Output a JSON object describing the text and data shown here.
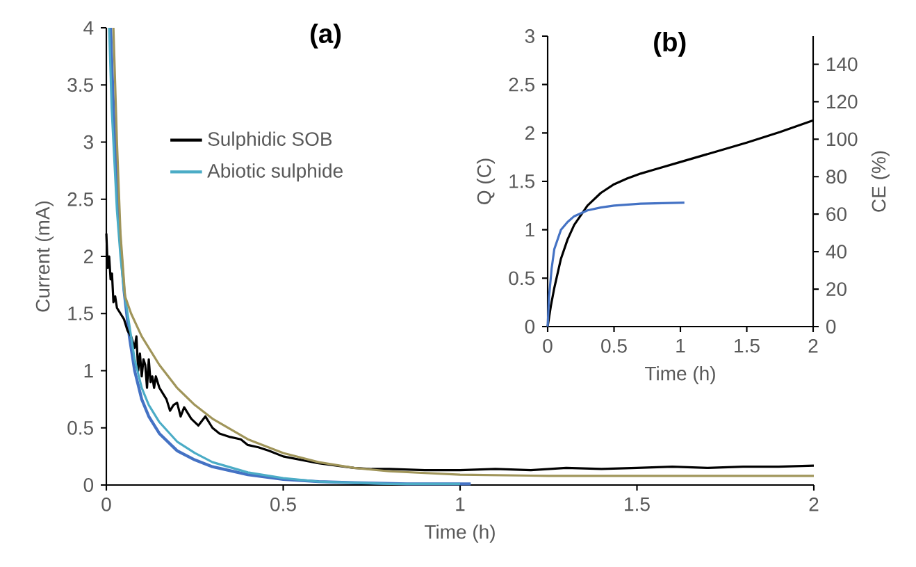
{
  "chart_data": [
    {
      "type": "line",
      "title": "(a)",
      "xlabel": "Time (h)",
      "ylabel": "Current (mA)",
      "xlim": [
        0,
        2
      ],
      "ylim": [
        0,
        4
      ],
      "xticks": [
        0,
        0.5,
        1,
        1.5,
        2
      ],
      "yticks": [
        0,
        0.5,
        1,
        1.5,
        2,
        2.5,
        3,
        3.5,
        4
      ],
      "legend": "top",
      "series": [
        {
          "color": "#4472c4",
          "x": [
            0.012,
            0.02,
            0.03,
            0.04,
            0.05,
            0.065,
            0.08,
            0.1,
            0.12,
            0.15,
            0.2,
            0.25,
            0.3,
            0.4,
            0.5,
            0.6,
            0.7,
            0.85,
            1.03
          ],
          "values": [
            4,
            3.3,
            2.6,
            2.1,
            1.7,
            1.3,
            1.0,
            0.75,
            0.6,
            0.45,
            0.3,
            0.22,
            0.16,
            0.09,
            0.05,
            0.03,
            0.02,
            0.01,
            0.01
          ]
        },
        {
          "name": "Sulphidic SOB",
          "color": "#000000",
          "x": [
            0,
            0.004,
            0.008,
            0.012,
            0.016,
            0.02,
            0.025,
            0.03,
            0.04,
            0.05,
            0.06,
            0.07,
            0.08,
            0.085,
            0.09,
            0.095,
            0.1,
            0.105,
            0.11,
            0.115,
            0.12,
            0.125,
            0.13,
            0.135,
            0.14,
            0.15,
            0.16,
            0.17,
            0.18,
            0.19,
            0.2,
            0.21,
            0.22,
            0.24,
            0.26,
            0.28,
            0.3,
            0.32,
            0.35,
            0.38,
            0.4,
            0.43,
            0.46,
            0.5,
            0.55,
            0.6,
            0.65,
            0.7,
            0.75,
            0.8,
            0.9,
            1.0,
            1.1,
            1.2,
            1.3,
            1.4,
            1.5,
            1.6,
            1.7,
            1.8,
            1.9,
            2.0
          ],
          "values": [
            2.2,
            1.9,
            2.0,
            1.8,
            1.85,
            1.6,
            1.65,
            1.55,
            1.5,
            1.45,
            1.35,
            1.3,
            1.2,
            1.3,
            1.0,
            1.15,
            0.95,
            1.1,
            1.05,
            0.85,
            1.1,
            0.9,
            0.95,
            0.85,
            0.95,
            0.85,
            0.8,
            0.75,
            0.65,
            0.7,
            0.72,
            0.6,
            0.68,
            0.58,
            0.52,
            0.6,
            0.5,
            0.45,
            0.42,
            0.4,
            0.35,
            0.33,
            0.3,
            0.25,
            0.22,
            0.19,
            0.17,
            0.15,
            0.14,
            0.14,
            0.13,
            0.13,
            0.14,
            0.13,
            0.15,
            0.14,
            0.15,
            0.16,
            0.15,
            0.16,
            0.16,
            0.17
          ]
        },
        {
          "name": "Abiotic sulphide",
          "color": "#4bacc6",
          "x": [
            0.008,
            0.015,
            0.02,
            0.03,
            0.04,
            0.05,
            0.06,
            0.08,
            0.1,
            0.12,
            0.15,
            0.2,
            0.25,
            0.3,
            0.4,
            0.5,
            0.6,
            0.7,
            0.8,
            1.0
          ],
          "values": [
            4,
            3.3,
            3.0,
            2.4,
            2.0,
            1.7,
            1.5,
            1.1,
            0.85,
            0.7,
            0.55,
            0.38,
            0.28,
            0.2,
            0.11,
            0.06,
            0.03,
            0.02,
            0.01,
            0.01
          ]
        },
        {
          "color": "#a0955a",
          "x": [
            0.02,
            0.03,
            0.04,
            0.053,
            0.07,
            0.1,
            0.15,
            0.2,
            0.25,
            0.3,
            0.4,
            0.5,
            0.6,
            0.7,
            0.8,
            1.0,
            1.25,
            1.5,
            1.75,
            2.0
          ],
          "values": [
            4,
            3.0,
            2.2,
            1.65,
            1.5,
            1.3,
            1.05,
            0.85,
            0.7,
            0.58,
            0.4,
            0.28,
            0.2,
            0.15,
            0.12,
            0.09,
            0.08,
            0.08,
            0.08,
            0.08
          ]
        }
      ]
    },
    {
      "type": "line",
      "title": "(b)",
      "xlabel": "Time (h)",
      "ylabel": "Q (C)",
      "y2label": "CE (%)",
      "xlim": [
        0,
        2
      ],
      "ylim": [
        0,
        3
      ],
      "xticks": [
        0,
        0.5,
        1,
        1.5,
        2
      ],
      "yticks": [
        0,
        0.5,
        1,
        1.5,
        2,
        2.5,
        3
      ],
      "y2lim": [
        0,
        155
      ],
      "y2ticks": [
        0,
        20,
        40,
        60,
        80,
        100,
        120,
        140
      ],
      "series": [
        {
          "color": "#000000",
          "x": [
            0,
            0.025,
            0.05,
            0.1,
            0.15,
            0.2,
            0.3,
            0.4,
            0.5,
            0.6,
            0.7,
            0.8,
            1.0,
            1.25,
            1.5,
            1.75,
            2.0
          ],
          "values": [
            0,
            0.22,
            0.4,
            0.7,
            0.9,
            1.05,
            1.25,
            1.38,
            1.47,
            1.53,
            1.58,
            1.62,
            1.7,
            1.8,
            1.9,
            2.01,
            2.13
          ]
        },
        {
          "color": "#4472c4",
          "x": [
            0,
            0.01,
            0.03,
            0.05,
            0.1,
            0.15,
            0.2,
            0.3,
            0.4,
            0.5,
            0.7,
            1.03
          ],
          "values": [
            0,
            0.3,
            0.6,
            0.8,
            1.0,
            1.08,
            1.14,
            1.2,
            1.23,
            1.25,
            1.27,
            1.28
          ]
        }
      ]
    }
  ]
}
